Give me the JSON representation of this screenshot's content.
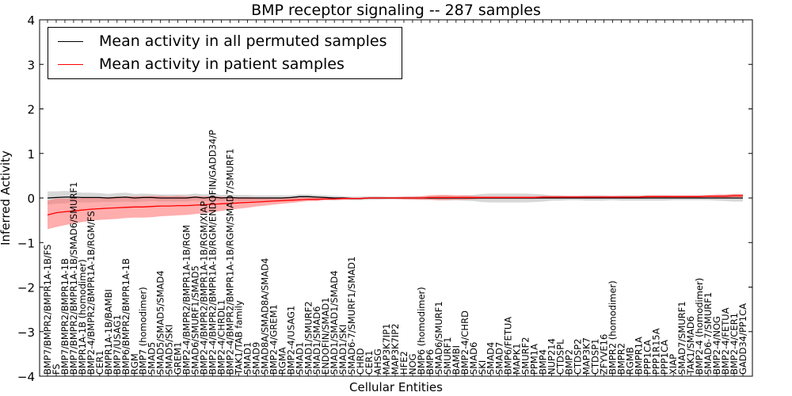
{
  "colors": {
    "permuted": "#000000",
    "patient": "#ff0000",
    "permuted_band": "#c8c8c8",
    "patient_band": "#ff6a6a"
  },
  "legend": {
    "permuted_label": "Mean activity in all permuted samples",
    "patient_label": "Mean activity in patient samples"
  },
  "chart_data": {
    "type": "line",
    "title": "BMP receptor signaling -- 287 samples",
    "xlabel": "Cellular Entities",
    "ylabel": "Inferred Activity",
    "ylim": [
      -4,
      4
    ],
    "yticks": [
      -4,
      -3,
      -2,
      -1,
      0,
      1,
      2,
      3,
      4
    ],
    "categories": [
      "BMP7/BMPR2/BMPR1A-1B/FS",
      "FS",
      "BMP7/BMPR2/BMPR1A-1B",
      "BMP7/BMPR2/BMPR1A-1B/SMAD6/SMURF1",
      "BMPR1A-1B (homodimer)",
      "BMP2-4/BMPR2/BMPR1A-1B/RGM/FS",
      "CER1",
      "BMPR1A-1B/BAMBI",
      "BMP7/USAG1",
      "BMP6/BMPR2/BMPR1A-1B",
      "RGM",
      "BMP7 (homodimer)",
      "SMAD5",
      "SMAD5/SMAD5/SMAD4",
      "SMAD5/SKI",
      "GREM1",
      "BMP2-4/BMPR2/BMPR1A-1B/RGM",
      "SMAD6/SMURF1/SMAD5",
      "BMP2-4/BMPR2/BMPR1A-1B/RGM/XIAP",
      "BMP2-4/BMPR2/BMPR1A-1B/RGM/ENDOFIN/GADD34/P",
      "BMP2-4/CHRDL1",
      "BMP2-4/BMPR2/BMPR1A-1B/RGM/SMAD7/SMURF1",
      "TAK1/TAB family",
      "SMAD1",
      "SMAD9",
      "SMAD8A/SMAD8A/SMAD4",
      "BMP2-4/GREM1",
      "RGMA",
      "BMP2-4/USAG1",
      "SMAD1",
      "SMAD1/SMURF2",
      "SMAD1/SMAD6",
      "ENDOFIN/SMAD1",
      "SMAD1/SMAD1/SMAD4",
      "SMAD1/SKI",
      "SMAD6-7/SMURF1/SMAD1",
      "CHRD",
      "CER1",
      "AHSG",
      "MAP3K7IP1",
      "MAP3K7IP2",
      "HFE2",
      "NOG",
      "BMP6 (homodimer)",
      "BMP6",
      "SMAD6/SMURF1",
      "SMURF1",
      "BAMBI",
      "BMP2-4/CHRD",
      "SMAD6",
      "SKI",
      "SMAD4",
      "SMAD7",
      "BMP6/FETUA",
      "MAPK1",
      "SMURF2",
      "PPM1A",
      "BMP4",
      "NUP214",
      "CTDSPL",
      "BMP2",
      "CTDSP2",
      "MAP3K7",
      "CTDSP1",
      "ZFYVE16",
      "BMPR2 (homodimer)",
      "BMPR2",
      "RGMB",
      "BMPR1A",
      "PPP1CA",
      "PPP1R15A",
      "PPP1CA",
      "XIAP",
      "SMAD7/SMURF1",
      "TAK1/SMAD6",
      "BMP2-4 (homodimer)",
      "SMAD6-7/SMURF1",
      "BMP2-4/NOG",
      "BMP2-4/FETUA",
      "BMP2-4/CER1",
      "GADD34/PP1CA"
    ],
    "series": [
      {
        "name": "Mean activity in all permuted samples",
        "values": [
          0.0,
          0.01,
          0.02,
          0.02,
          0.01,
          0.01,
          0.01,
          0.0,
          0.01,
          0.02,
          0.0,
          0.01,
          0.01,
          0.0,
          0.0,
          0.0,
          0.0,
          0.02,
          0.0,
          0.02,
          0.0,
          0.01,
          0.0,
          0.0,
          0.0,
          0.0,
          0.0,
          0.0,
          0.01,
          0.03,
          0.03,
          0.02,
          0.01,
          0.0,
          0.0,
          -0.01,
          -0.01,
          0.0,
          0.0,
          0.0,
          0.0,
          0.0,
          0.0,
          0.0,
          0.0,
          0.0,
          0.0,
          0.0,
          0.0,
          0.0,
          0.0,
          0.0,
          0.0,
          0.0,
          0.0,
          0.0,
          0.0,
          0.0,
          0.0,
          0.0,
          0.0,
          0.0,
          0.0,
          0.0,
          0.0,
          0.0,
          0.0,
          0.0,
          0.0,
          0.0,
          0.0,
          0.0,
          0.0,
          0.0,
          0.0,
          0.0,
          0.0,
          0.0,
          0.0,
          0.0,
          0.0
        ],
        "spread": [
          0.15,
          0.14,
          0.14,
          0.12,
          0.11,
          0.11,
          0.1,
          0.09,
          0.1,
          0.1,
          0.09,
          0.09,
          0.08,
          0.08,
          0.08,
          0.08,
          0.08,
          0.08,
          0.08,
          0.08,
          0.07,
          0.07,
          0.07,
          0.07,
          0.06,
          0.06,
          0.06,
          0.06,
          0.05,
          0.05,
          0.05,
          0.05,
          0.05,
          0.05,
          0.04,
          0.04,
          0.04,
          0.04,
          0.04,
          0.03,
          0.03,
          0.03,
          0.04,
          0.04,
          0.04,
          0.05,
          0.05,
          0.05,
          0.06,
          0.07,
          0.09,
          0.1,
          0.1,
          0.1,
          0.1,
          0.1,
          0.09,
          0.08,
          0.06,
          0.06,
          0.05,
          0.05,
          0.06,
          0.06,
          0.06,
          0.05,
          0.06,
          0.06,
          0.06,
          0.06,
          0.06,
          0.06,
          0.05,
          0.05,
          0.05,
          0.05,
          0.05,
          0.06,
          0.07,
          0.08,
          0.08
        ]
      },
      {
        "name": "Mean activity in patient samples",
        "values": [
          -0.38,
          -0.33,
          -0.31,
          -0.29,
          -0.27,
          -0.25,
          -0.24,
          -0.23,
          -0.22,
          -0.21,
          -0.2,
          -0.2,
          -0.19,
          -0.18,
          -0.18,
          -0.17,
          -0.17,
          -0.16,
          -0.15,
          -0.14,
          -0.13,
          -0.12,
          -0.11,
          -0.1,
          -0.09,
          -0.08,
          -0.07,
          -0.06,
          -0.05,
          -0.04,
          -0.03,
          -0.03,
          -0.02,
          -0.02,
          -0.01,
          -0.01,
          -0.01,
          0.0,
          0.0,
          0.0,
          0.0,
          0.0,
          0.0,
          0.0,
          0.01,
          0.01,
          0.01,
          0.01,
          0.01,
          0.01,
          0.01,
          0.01,
          0.01,
          0.01,
          0.01,
          0.01,
          0.01,
          0.02,
          0.02,
          0.02,
          0.02,
          0.02,
          0.02,
          0.02,
          0.02,
          0.02,
          0.02,
          0.02,
          0.02,
          0.03,
          0.03,
          0.03,
          0.03,
          0.03,
          0.03,
          0.03,
          0.04,
          0.04,
          0.04,
          0.05,
          0.05
        ],
        "spread": [
          0.32,
          0.32,
          0.3,
          0.28,
          0.27,
          0.26,
          0.25,
          0.25,
          0.25,
          0.24,
          0.24,
          0.24,
          0.24,
          0.23,
          0.22,
          0.22,
          0.21,
          0.2,
          0.19,
          0.18,
          0.16,
          0.14,
          0.13,
          0.12,
          0.1,
          0.09,
          0.08,
          0.07,
          0.06,
          0.05,
          0.04,
          0.04,
          0.03,
          0.03,
          0.03,
          0.02,
          0.02,
          0.02,
          0.02,
          0.02,
          0.02,
          0.03,
          0.03,
          0.04,
          0.05,
          0.06,
          0.06,
          0.05,
          0.05,
          0.04,
          0.03,
          0.03,
          0.03,
          0.03,
          0.03,
          0.03,
          0.03,
          0.03,
          0.03,
          0.03,
          0.03,
          0.03,
          0.03,
          0.03,
          0.03,
          0.03,
          0.03,
          0.03,
          0.03,
          0.03,
          0.03,
          0.03,
          0.03,
          0.03,
          0.03,
          0.03,
          0.03,
          0.04,
          0.04,
          0.04,
          0.04
        ]
      }
    ]
  }
}
